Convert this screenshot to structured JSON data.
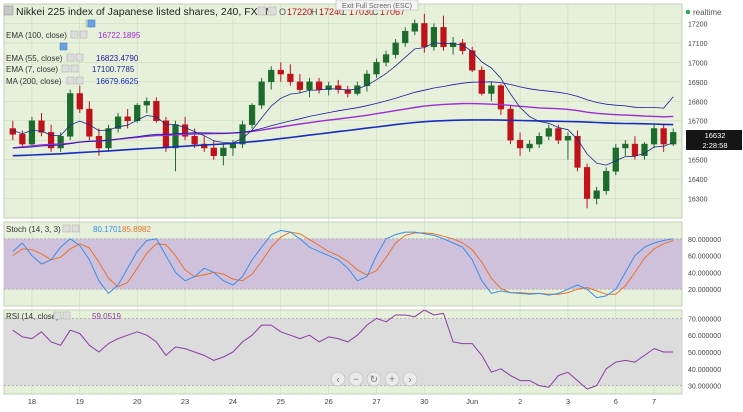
{
  "header": {
    "title": "Nikkei 225 index of Japanese listed shares, 240, FXCM",
    "ohlc": {
      "o_label": "O",
      "o": "17220",
      "h_label": "H",
      "h": "17240",
      "l_label": "L",
      "l": "17030",
      "c_label": "C",
      "c": "17067"
    },
    "exit_fullscreen": "Exit Full Screen (ESC)",
    "realtime": "realtime"
  },
  "legend": [
    {
      "label": "EMA (100, close)",
      "value": "16722.1895",
      "color": "#9d2bd6"
    },
    {
      "label": "EMA (55, close)",
      "value": "16823.4790",
      "color": "#1a1aa8"
    },
    {
      "label": "EMA (7, close)",
      "value": "17100.7785",
      "color": "#1a2a8a"
    },
    {
      "label": "MA (200, close)",
      "value": "16679.6625",
      "color": "#1a2cc0"
    }
  ],
  "stoch_panel": {
    "label": "Stoch (14, 3, 3)",
    "k": "80.1701",
    "d": "85.8982",
    "k_color": "#3a8ee6",
    "d_color": "#e8742a"
  },
  "rsi_panel": {
    "label": "RSI (14, close)",
    "value": "59.0519",
    "color": "#8a3aa8"
  },
  "price_badges": {
    "last": "16632",
    "time": "2:28:58"
  },
  "zoom_controls": [
    {
      "name": "scroll-left-icon",
      "glyph": "‹"
    },
    {
      "name": "zoom-out-icon",
      "glyph": "−"
    },
    {
      "name": "reset-icon",
      "glyph": "↻"
    },
    {
      "name": "zoom-in-icon",
      "glyph": "+"
    },
    {
      "name": "scroll-right-icon",
      "glyph": "›"
    }
  ],
  "colors": {
    "up": "#1e6b2e",
    "down": "#c0121a",
    "plot_bg": "#e6f0da",
    "stoch_band": "#cfc0dc",
    "rsi_band": "#dcdcdc",
    "grid": "#c8d6bc"
  },
  "chart_data": {
    "type": "candlestick",
    "x_ticks": [
      "18",
      "19",
      "20",
      "23",
      "24",
      "25",
      "26",
      "27",
      "30",
      "Jun",
      "2",
      "3",
      "6",
      "7"
    ],
    "price_axis": {
      "ticks": [
        16300,
        16400,
        16500,
        16600,
        16700,
        16800,
        16900,
        17000,
        17100,
        17200
      ],
      "range": [
        16200,
        17300
      ]
    },
    "candles": [
      [
        16660,
        16700,
        16600,
        16630
      ],
      [
        16630,
        16650,
        16560,
        16580
      ],
      [
        16580,
        16720,
        16570,
        16700
      ],
      [
        16700,
        16740,
        16620,
        16640
      ],
      [
        16640,
        16680,
        16540,
        16560
      ],
      [
        16560,
        16640,
        16540,
        16620
      ],
      [
        16620,
        16860,
        16600,
        16840
      ],
      [
        16840,
        16880,
        16740,
        16760
      ],
      [
        16760,
        16800,
        16600,
        16620
      ],
      [
        16620,
        16660,
        16520,
        16560
      ],
      [
        16560,
        16680,
        16540,
        16660
      ],
      [
        16660,
        16740,
        16640,
        16720
      ],
      [
        16720,
        16760,
        16660,
        16700
      ],
      [
        16700,
        16790,
        16690,
        16780
      ],
      [
        16780,
        16820,
        16740,
        16800
      ],
      [
        16800,
        16820,
        16690,
        16700
      ],
      [
        16700,
        16720,
        16540,
        16560
      ],
      [
        16560,
        16700,
        16440,
        16680
      ],
      [
        16680,
        16720,
        16600,
        16620
      ],
      [
        16620,
        16660,
        16560,
        16580
      ],
      [
        16580,
        16620,
        16540,
        16560
      ],
      [
        16560,
        16600,
        16500,
        16520
      ],
      [
        16520,
        16580,
        16470,
        16560
      ],
      [
        16560,
        16600,
        16520,
        16580
      ],
      [
        16580,
        16700,
        16560,
        16680
      ],
      [
        16680,
        16790,
        16660,
        16780
      ],
      [
        16780,
        16920,
        16760,
        16900
      ],
      [
        16900,
        16980,
        16860,
        16960
      ],
      [
        16960,
        17000,
        16900,
        16940
      ],
      [
        16940,
        16990,
        16880,
        16900
      ],
      [
        16900,
        16940,
        16840,
        16860
      ],
      [
        16860,
        16920,
        16820,
        16900
      ],
      [
        16900,
        16920,
        16840,
        16860
      ],
      [
        16860,
        16900,
        16830,
        16880
      ],
      [
        16880,
        16910,
        16840,
        16860
      ],
      [
        16860,
        16880,
        16820,
        16840
      ],
      [
        16840,
        16900,
        16830,
        16880
      ],
      [
        16880,
        16960,
        16850,
        16940
      ],
      [
        16940,
        17020,
        16920,
        17000
      ],
      [
        17000,
        17060,
        16980,
        17040
      ],
      [
        17040,
        17120,
        17020,
        17100
      ],
      [
        17100,
        17180,
        17080,
        17160
      ],
      [
        17160,
        17220,
        17140,
        17200
      ],
      [
        17200,
        17250,
        17050,
        17080
      ],
      [
        17080,
        17200,
        17060,
        17180
      ],
      [
        17180,
        17240,
        17060,
        17080
      ],
      [
        17080,
        17130,
        17040,
        17100
      ],
      [
        17100,
        17120,
        17040,
        17060
      ],
      [
        17060,
        17080,
        16950,
        16960
      ],
      [
        16960,
        16980,
        16830,
        16840
      ],
      [
        16840,
        16900,
        16800,
        16880
      ],
      [
        16880,
        16890,
        16730,
        16760
      ],
      [
        16760,
        16780,
        16580,
        16600
      ],
      [
        16600,
        16640,
        16520,
        16560
      ],
      [
        16560,
        16600,
        16540,
        16580
      ],
      [
        16580,
        16640,
        16560,
        16620
      ],
      [
        16620,
        16680,
        16600,
        16660
      ],
      [
        16660,
        16680,
        16580,
        16600
      ],
      [
        16600,
        16640,
        16500,
        16620
      ],
      [
        16620,
        16650,
        16440,
        16460
      ],
      [
        16460,
        16480,
        16250,
        16300
      ],
      [
        16300,
        16360,
        16270,
        16340
      ],
      [
        16340,
        16460,
        16320,
        16440
      ],
      [
        16440,
        16580,
        16420,
        16560
      ],
      [
        16560,
        16600,
        16520,
        16580
      ],
      [
        16580,
        16620,
        16500,
        16520
      ],
      [
        16520,
        16590,
        16500,
        16580
      ],
      [
        16580,
        16680,
        16560,
        16660
      ],
      [
        16660,
        16680,
        16540,
        16580
      ],
      [
        16580,
        16660,
        16570,
        16640
      ]
    ],
    "ema100": [
      16560,
      16565,
      16570,
      16575,
      16578,
      16580,
      16584,
      16590,
      16594,
      16596,
      16600,
      16605,
      16610,
      16615,
      16620,
      16624,
      16625,
      16628,
      16630,
      16632,
      16633,
      16634,
      16635,
      16637,
      16640,
      16645,
      16652,
      16660,
      16668,
      16676,
      16683,
      16690,
      16697,
      16703,
      16709,
      16715,
      16721,
      16728,
      16736,
      16744,
      16752,
      16760,
      16768,
      16775,
      16780,
      16784,
      16786,
      16788,
      16788,
      16787,
      16785,
      16783,
      16779,
      16774,
      16770,
      16766,
      16764,
      16762,
      16758,
      16752,
      16744,
      16738,
      16734,
      16731,
      16729,
      16727,
      16724,
      16722,
      16720,
      16722
    ],
    "ema55": [
      16560,
      16562,
      16565,
      16570,
      16572,
      16575,
      16582,
      16590,
      16594,
      16596,
      16600,
      16606,
      16612,
      16618,
      16625,
      16630,
      16630,
      16633,
      16636,
      16638,
      16638,
      16637,
      16636,
      16637,
      16641,
      16648,
      16660,
      16674,
      16687,
      16699,
      16710,
      16722,
      16732,
      16742,
      16751,
      16759,
      16767,
      16777,
      16789,
      16802,
      16816,
      16831,
      16846,
      16857,
      16868,
      16876,
      16885,
      16893,
      16898,
      16899,
      16900,
      16896,
      16886,
      16874,
      16864,
      16857,
      16852,
      16846,
      16838,
      16825,
      16808,
      16794,
      16785,
      16780,
      16776,
      16769,
      16768,
      16768,
      16765,
      16823
    ],
    "ema7": [
      16650,
      16633,
      16650,
      16647,
      16625,
      16624,
      16678,
      16698,
      16679,
      16649,
      16652,
      16669,
      16677,
      16703,
      16727,
      16720,
      16680,
      16680,
      16665,
      16644,
      16623,
      16597,
      16588,
      16586,
      16609,
      16652,
      16714,
      16775,
      16816,
      16837,
      16843,
      16857,
      16858,
      16864,
      16863,
      16857,
      16863,
      16882,
      16911,
      16943,
      16982,
      17026,
      17069,
      17076,
      17101,
      17096,
      17097,
      17088,
      17056,
      17002,
      16971,
      16918,
      16838,
      16768,
      16721,
      16696,
      16687,
      16665,
      16654,
      16605,
      16529,
      16482,
      16472,
      16494,
      16516,
      16517,
      16533,
      16565,
      16569,
      16587
    ],
    "ma200": [
      16520,
      16522,
      16524,
      16526,
      16528,
      16530,
      16533,
      16536,
      16539,
      16542,
      16545,
      16548,
      16551,
      16554,
      16557,
      16560,
      16563,
      16566,
      16569,
      16572,
      16575,
      16578,
      16581,
      16584,
      16588,
      16592,
      16597,
      16602,
      16608,
      16614,
      16620,
      16626,
      16632,
      16638,
      16644,
      16650,
      16656,
      16662,
      16668,
      16674,
      16680,
      16686,
      16691,
      16695,
      16698,
      16700,
      16702,
      16703,
      16704,
      16704,
      16704,
      16703,
      16702,
      16701,
      16700,
      16699,
      16698,
      16697,
      16696,
      16695,
      16693,
      16691,
      16689,
      16687,
      16686,
      16685,
      16684,
      16683,
      16681,
      16680
    ],
    "stoch_axis": {
      "ticks": [
        20,
        40,
        60,
        80
      ],
      "range": [
        0,
        100
      ]
    },
    "stoch_k": [
      65,
      75,
      60,
      50,
      55,
      70,
      80,
      72,
      55,
      30,
      15,
      25,
      45,
      65,
      78,
      80,
      60,
      40,
      30,
      35,
      45,
      40,
      30,
      25,
      35,
      55,
      70,
      85,
      90,
      88,
      80,
      70,
      65,
      60,
      55,
      45,
      30,
      35,
      60,
      80,
      85,
      88,
      88,
      86,
      84,
      80,
      75,
      70,
      55,
      30,
      15,
      18,
      16,
      15,
      14,
      15,
      13,
      15,
      20,
      25,
      20,
      10,
      12,
      20,
      40,
      60,
      70,
      75,
      78,
      80
    ],
    "stoch_d": [
      60,
      68,
      67,
      62,
      55,
      58,
      68,
      74,
      69,
      52,
      33,
      23,
      28,
      45,
      63,
      74,
      73,
      60,
      43,
      35,
      37,
      40,
      38,
      32,
      30,
      38,
      53,
      70,
      82,
      88,
      86,
      79,
      72,
      65,
      60,
      53,
      43,
      37,
      42,
      58,
      75,
      84,
      87,
      87,
      86,
      83,
      80,
      75,
      67,
      52,
      33,
      21,
      16,
      16,
      15,
      15,
      14,
      14,
      16,
      20,
      22,
      18,
      14,
      14,
      24,
      40,
      57,
      68,
      74,
      78
    ],
    "rsi_axis": {
      "ticks": [
        30,
        40,
        50,
        60,
        70
      ],
      "range": [
        25,
        75
      ]
    },
    "rsi": [
      63,
      59,
      58,
      62,
      56,
      54,
      63,
      61,
      54,
      50,
      55,
      58,
      60,
      62,
      60,
      56,
      48,
      53,
      52,
      50,
      48,
      45,
      47,
      50,
      56,
      60,
      66,
      66,
      62,
      60,
      58,
      60,
      56,
      59,
      58,
      56,
      60,
      66,
      70,
      68,
      72,
      72,
      71,
      75,
      72,
      73,
      56,
      55,
      55,
      48,
      38,
      40,
      36,
      33,
      33,
      30,
      29,
      36,
      38,
      33,
      28,
      30,
      40,
      44,
      45,
      44,
      48,
      52,
      50,
      50
    ]
  }
}
